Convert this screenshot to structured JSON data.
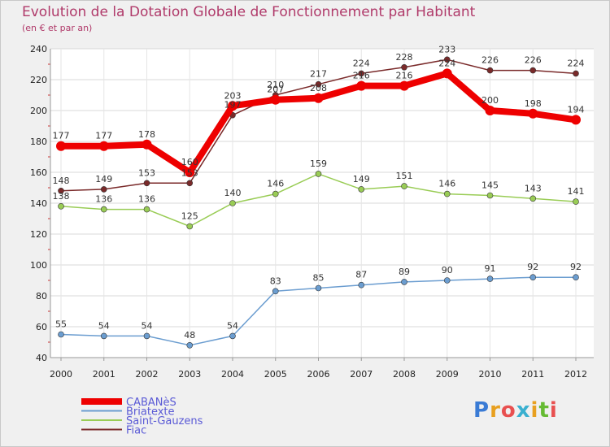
{
  "title": "Evolution de la Dotation Globale de Fonctionnement par Habitant",
  "subtitle": "(en € et par an)",
  "logo_text": "Proxiti",
  "chart_data": {
    "type": "line",
    "categories": [
      "2000",
      "2001",
      "2002",
      "2003",
      "2004",
      "2005",
      "2006",
      "2007",
      "2008",
      "2009",
      "2010",
      "2011",
      "2012"
    ],
    "ylim": [
      40,
      240
    ],
    "yticks": [
      40,
      60,
      80,
      100,
      120,
      140,
      160,
      180,
      200,
      220,
      240
    ],
    "grid": true,
    "legend_position": "bottom-left",
    "series": [
      {
        "name": "CABANèS",
        "color": "#ee0000",
        "width": 8,
        "marker": 6,
        "values": [
          177,
          177,
          178,
          160,
          203,
          207,
          208,
          216,
          216,
          224,
          200,
          198,
          194
        ]
      },
      {
        "name": "Briatexte",
        "color": "#6b9dd0",
        "width": 1.5,
        "marker": 3.5,
        "values": [
          55,
          54,
          54,
          48,
          54,
          83,
          85,
          87,
          89,
          90,
          91,
          92,
          92
        ]
      },
      {
        "name": "Saint-Gauzens",
        "color": "#99cc55",
        "width": 1.5,
        "marker": 3.5,
        "values": [
          138,
          136,
          136,
          125,
          140,
          146,
          159,
          149,
          151,
          146,
          145,
          143,
          141
        ]
      },
      {
        "name": "Fiac",
        "color": "#7a2a2a",
        "width": 1.5,
        "marker": 3.5,
        "values": [
          148,
          149,
          153,
          153,
          197,
          210,
          217,
          224,
          228,
          233,
          226,
          226,
          224
        ]
      }
    ]
  }
}
